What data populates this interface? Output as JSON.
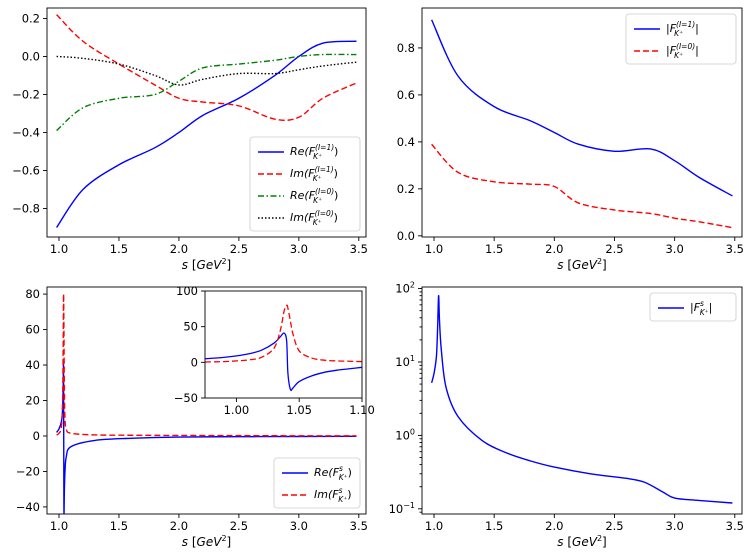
{
  "figure": {
    "panel_count": 4
  },
  "chart_data": [
    {
      "id": "top-left",
      "type": "line",
      "title": "",
      "xlabel": "s [GeV²]",
      "ylabel": "",
      "xlim": [
        0.9,
        3.56
      ],
      "ylim": [
        -0.95,
        0.255
      ],
      "xticks": [
        1.0,
        1.5,
        2.0,
        2.5,
        3.0,
        3.5
      ],
      "xtick_labels": [
        "1.0",
        "1.5",
        "2.0",
        "2.5",
        "3.0",
        "3.5"
      ],
      "yticks": [
        -0.8,
        -0.6,
        -0.4,
        -0.2,
        0.0,
        0.2
      ],
      "ytick_labels": [
        "−0.8",
        "−0.6",
        "−0.4",
        "−0.2",
        "0.0",
        "0.2"
      ],
      "legend_position": "lower-right",
      "x": [
        0.98,
        1.2,
        1.5,
        1.8,
        2.0,
        2.2,
        2.5,
        2.8,
        3.0,
        3.2,
        3.48
      ],
      "series": [
        {
          "name": "Re(F_{K⁺}^{(I=1)})",
          "name_main": "Re(F",
          "name_sub": "K⁺",
          "name_sup": "(I=1)",
          "name_close": ")",
          "color": "#0000ff",
          "dash": "solid",
          "values": [
            -0.9,
            -0.7,
            -0.57,
            -0.48,
            -0.4,
            -0.31,
            -0.22,
            -0.1,
            0.0,
            0.07,
            0.08
          ]
        },
        {
          "name": "Im(F_{K⁺}^{(I=1)})",
          "name_main": "Im(F",
          "name_sub": "K⁺",
          "name_sup": "(I=1)",
          "name_close": ")",
          "color": "#ff0000",
          "dash": "dashed",
          "values": [
            0.22,
            0.08,
            -0.04,
            -0.15,
            -0.22,
            -0.24,
            -0.26,
            -0.33,
            -0.32,
            -0.22,
            -0.14
          ]
        },
        {
          "name": "Re(F_{K⁺}^{(I=0)})",
          "name_main": "Re(F",
          "name_sub": "K⁺",
          "name_sup": "(I=0)",
          "name_close": ")",
          "color": "#008000",
          "dash": "dashdot",
          "values": [
            -0.39,
            -0.27,
            -0.22,
            -0.2,
            -0.13,
            -0.06,
            -0.04,
            -0.02,
            0.0,
            0.01,
            0.01
          ]
        },
        {
          "name": "Im(F_{K⁺}^{(I=0)})",
          "name_main": "Im(F",
          "name_sub": "K⁺",
          "name_sup": "(I=0)",
          "name_close": ")",
          "color": "#000000",
          "dash": "dotted",
          "values": [
            0.0,
            -0.01,
            -0.04,
            -0.1,
            -0.15,
            -0.12,
            -0.09,
            -0.09,
            -0.07,
            -0.05,
            -0.03
          ]
        }
      ]
    },
    {
      "id": "top-right",
      "type": "line",
      "title": "",
      "xlabel": "s [GeV²]",
      "ylabel": "",
      "xlim": [
        0.9,
        3.56
      ],
      "ylim": [
        -0.005,
        0.97
      ],
      "xticks": [
        1.0,
        1.5,
        2.0,
        2.5,
        3.0,
        3.5
      ],
      "xtick_labels": [
        "1.0",
        "1.5",
        "2.0",
        "2.5",
        "3.0",
        "3.5"
      ],
      "yticks": [
        0.0,
        0.2,
        0.4,
        0.6,
        0.8
      ],
      "ytick_labels": [
        "0.0",
        "0.2",
        "0.4",
        "0.6",
        "0.8"
      ],
      "legend_position": "upper-right",
      "x": [
        0.98,
        1.2,
        1.5,
        1.8,
        2.0,
        2.2,
        2.5,
        2.8,
        3.0,
        3.2,
        3.48
      ],
      "series": [
        {
          "name": "|F_{K⁺}^{(I=1)}|",
          "name_main": "|F",
          "name_sub": "K⁺",
          "name_sup": "(I=1)",
          "name_close": "|",
          "color": "#0000ff",
          "dash": "solid",
          "values": [
            0.92,
            0.68,
            0.55,
            0.49,
            0.44,
            0.39,
            0.36,
            0.37,
            0.32,
            0.25,
            0.17
          ]
        },
        {
          "name": "|F_{K⁺}^{(I=0)}|",
          "name_main": "|F",
          "name_sub": "K⁺",
          "name_sup": "(I=0)",
          "name_close": "|",
          "color": "#ff0000",
          "dash": "dashed",
          "values": [
            0.39,
            0.27,
            0.23,
            0.22,
            0.21,
            0.14,
            0.11,
            0.095,
            0.075,
            0.06,
            0.035
          ]
        }
      ]
    },
    {
      "id": "bottom-left",
      "type": "line",
      "title": "",
      "xlabel": "s [GeV²]",
      "ylabel": "",
      "xlim": [
        0.9,
        3.56
      ],
      "ylim": [
        -44,
        84
      ],
      "xticks": [
        1.0,
        1.5,
        2.0,
        2.5,
        3.0,
        3.5
      ],
      "xtick_labels": [
        "1.0",
        "1.5",
        "2.0",
        "2.5",
        "3.0",
        "3.5"
      ],
      "yticks": [
        -40,
        -20,
        0,
        20,
        40,
        60,
        80
      ],
      "ytick_labels": [
        "−40",
        "−20",
        "0",
        "20",
        "40",
        "60",
        "80"
      ],
      "legend_position": "lower-right",
      "x": [
        0.98,
        1.0,
        1.02,
        1.03,
        1.035,
        1.038,
        1.041,
        1.045,
        1.05,
        1.06,
        1.1,
        1.3,
        1.6,
        2.0,
        2.5,
        3.0,
        3.48
      ],
      "series": [
        {
          "name": "Re(F^s_{K⁺})",
          "name_main": "Re(F",
          "name_sub": "K⁺",
          "name_sup": "s",
          "name_close": ")",
          "color": "#0000ff",
          "dash": "solid",
          "values": [
            2,
            4,
            8,
            15,
            28,
            38,
            -40,
            -30,
            -20,
            -12,
            -6,
            -2.5,
            -1.3,
            -0.6,
            -0.4,
            -0.3,
            -0.2
          ]
        },
        {
          "name": "Im(F^s_{K⁺})",
          "name_main": "Im(F",
          "name_sub": "K⁺",
          "name_sup": "s",
          "name_close": ")",
          "color": "#ff0000",
          "dash": "dashed",
          "values": [
            0.5,
            1.5,
            5,
            20,
            50,
            80,
            60,
            25,
            10,
            4,
            1.5,
            0.6,
            0.4,
            0.3,
            0.2,
            0.1,
            0.1
          ]
        }
      ],
      "inset": {
        "xlim": [
          0.975,
          1.1
        ],
        "ylim": [
          -50,
          100
        ],
        "xticks": [
          1.0,
          1.05,
          1.1
        ],
        "xtick_labels": [
          "1.00",
          "1.05",
          "1.10"
        ],
        "yticks": [
          -50,
          0,
          50,
          100
        ],
        "ytick_labels": [
          "−50",
          "0",
          "50",
          "100"
        ],
        "x": [
          0.975,
          0.99,
          1.0,
          1.01,
          1.02,
          1.03,
          1.035,
          1.038,
          1.04,
          1.041,
          1.043,
          1.045,
          1.05,
          1.06,
          1.07,
          1.08,
          1.09,
          1.1
        ],
        "series": [
          {
            "name": "Re(F^s_{K⁺})",
            "color": "#0000ff",
            "dash": "solid",
            "values": [
              5,
              7,
              9,
              12,
              17,
              27,
              36,
              41,
              30,
              -15,
              -38,
              -36,
              -27,
              -19,
              -14,
              -11,
              -9,
              -7
            ]
          },
          {
            "name": "Im(F^s_{K⁺})",
            "color": "#ff0000",
            "dash": "dashed",
            "values": [
              0.5,
              1,
              2,
              3.5,
              7,
              20,
              45,
              72,
              80,
              76,
              58,
              40,
              16,
              6,
              3,
              2,
              1.5,
              1
            ]
          }
        ]
      }
    },
    {
      "id": "bottom-right",
      "type": "line",
      "yscale": "log",
      "title": "",
      "xlabel": "s [GeV²]",
      "ylabel": "",
      "xlim": [
        0.9,
        3.56
      ],
      "ylim": [
        0.085,
        105
      ],
      "xticks": [
        1.0,
        1.5,
        2.0,
        2.5,
        3.0,
        3.5
      ],
      "xtick_labels": [
        "1.0",
        "1.5",
        "2.0",
        "2.5",
        "3.0",
        "3.5"
      ],
      "yticks": [
        0.1,
        1,
        10,
        100
      ],
      "ytick_labels": [
        "10⁻¹",
        "10⁰",
        "10¹",
        "10²"
      ],
      "legend_position": "upper-right",
      "x": [
        0.98,
        1.0,
        1.02,
        1.03,
        1.038,
        1.045,
        1.06,
        1.1,
        1.2,
        1.4,
        1.6,
        1.8,
        2.0,
        2.3,
        2.6,
        2.75,
        2.9,
        3.0,
        3.2,
        3.48
      ],
      "series": [
        {
          "name": "|F^s_{K⁺}|",
          "name_main": "|F",
          "name_sub": "K⁺",
          "name_sup": "s",
          "name_close": "|",
          "color": "#0000ff",
          "dash": "solid",
          "values": [
            5.2,
            7,
            12,
            30,
            80,
            38,
            15,
            4.5,
            1.8,
            0.85,
            0.58,
            0.45,
            0.37,
            0.3,
            0.26,
            0.23,
            0.17,
            0.14,
            0.13,
            0.12
          ]
        }
      ]
    }
  ]
}
